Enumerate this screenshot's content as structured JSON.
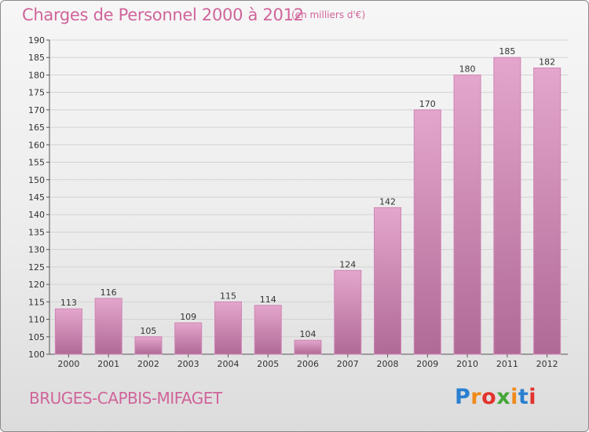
{
  "header": {
    "title": "Charges de Personnel 2000 à 2012",
    "units": "(en milliers d'€)"
  },
  "footer": {
    "place": "BRUGES-CAPBIS-MIFAGET",
    "logo_letters": [
      "P",
      "r",
      "o",
      "x",
      "i",
      "t",
      "i"
    ],
    "logo_colors": [
      "#2a7fd0",
      "#f08a1c",
      "#e2322c",
      "#44a638",
      "#f08a1c",
      "#2a7fd0",
      "#e2322c"
    ]
  },
  "colors": {
    "bar_top": "#e4a6cc",
    "bar_bottom": "#b06a96",
    "bar_side": "#cf85b4",
    "title": "#d0649a"
  },
  "chart_data": {
    "type": "bar",
    "title": "Charges de Personnel 2000 à 2012",
    "subtitle": "(en milliers d'€)",
    "categories": [
      "2000",
      "2001",
      "2002",
      "2003",
      "2004",
      "2005",
      "2006",
      "2007",
      "2008",
      "2009",
      "2010",
      "2011",
      "2012"
    ],
    "values": [
      113,
      116,
      105,
      109,
      115,
      114,
      104,
      124,
      142,
      170,
      180,
      185,
      182
    ],
    "ylim": [
      100,
      190
    ],
    "ytick_step": 5,
    "grid": true
  }
}
